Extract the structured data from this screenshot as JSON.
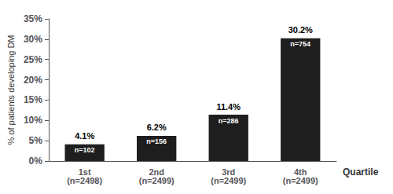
{
  "chart_data": {
    "type": "bar",
    "categories": [
      "1st\n(n=2498)",
      "2nd\n(n=2499)",
      "3rd\n(n=2499)",
      "4th\n(n=2499)"
    ],
    "values": [
      4.1,
      6.2,
      11.4,
      30.2
    ],
    "value_labels": [
      "4.1%",
      "6.2%",
      "11.4%",
      "30.2%"
    ],
    "data_labels": true,
    "annotations": [
      "n=102",
      "n=156",
      "n=286",
      "n=754"
    ],
    "color": "#1e1e1e",
    "ylabel": "% of patients developing DM",
    "xlabel": "Quartile",
    "ylim": [
      0,
      35
    ],
    "yticks": [
      {
        "value": 0,
        "label": "0%"
      },
      {
        "value": 5,
        "label": "5%"
      },
      {
        "value": 10,
        "label": "10%"
      },
      {
        "value": 15,
        "label": "15%"
      },
      {
        "value": 20,
        "label": "20%"
      },
      {
        "value": 25,
        "label": "25%"
      },
      {
        "value": 30,
        "label": "30%"
      },
      {
        "value": 35,
        "label": "35%"
      }
    ],
    "grid": false
  }
}
